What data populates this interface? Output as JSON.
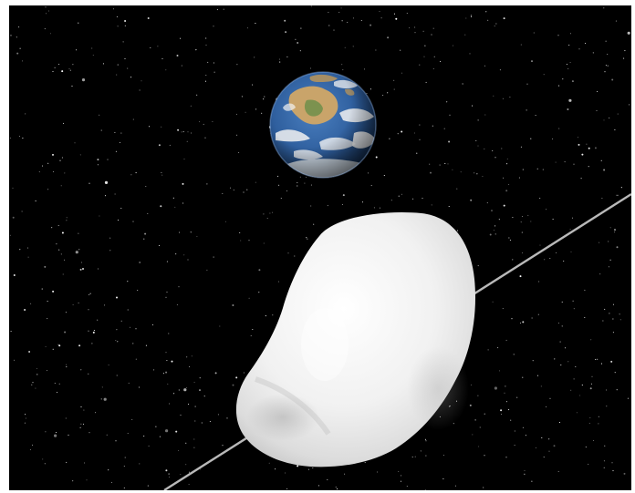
{
  "scene": {
    "colors": {
      "space": "#000000",
      "frame": "#ffffff",
      "star": "#ffffff",
      "orbit_line": "#b9b9b9",
      "asteroid_light": "#ffffff",
      "asteroid_mid": "#e6e6e6",
      "asteroid_shadow": "#c9c9c9",
      "earth_ocean": "#2f5f9e",
      "earth_land": "#c9a46a",
      "earth_land_green": "#6f8f4a",
      "earth_cloud": "#f2f2f2"
    },
    "objects": [
      "starfield",
      "earth",
      "asteroid",
      "orbit-path"
    ]
  }
}
